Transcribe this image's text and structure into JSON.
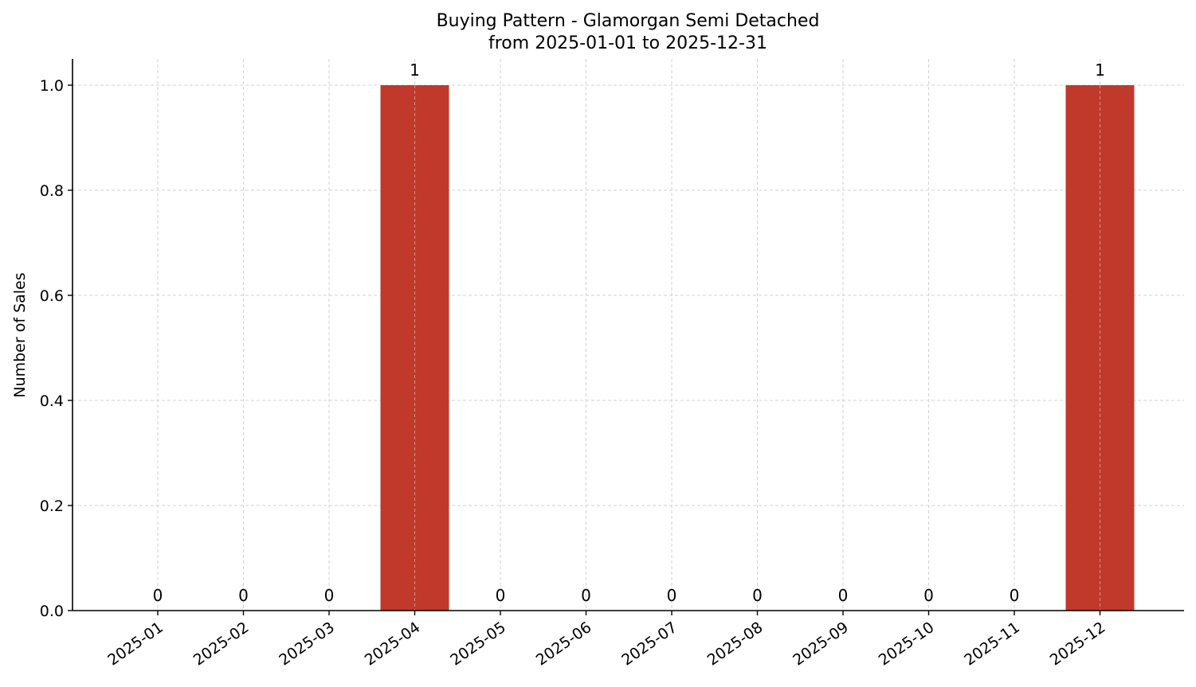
{
  "chart_data": {
    "type": "bar",
    "title": "Buying Pattern - Glamorgan Semi Detached",
    "subtitle": "from 2025-01-01 to 2025-12-31",
    "xlabel": "",
    "ylabel": "Number of Sales",
    "categories": [
      "2025-01",
      "2025-02",
      "2025-03",
      "2025-04",
      "2025-05",
      "2025-06",
      "2025-07",
      "2025-08",
      "2025-09",
      "2025-10",
      "2025-11",
      "2025-12"
    ],
    "values": [
      0,
      0,
      0,
      1,
      0,
      0,
      0,
      0,
      0,
      0,
      0,
      1
    ],
    "data_labels": [
      "0",
      "0",
      "0",
      "1",
      "0",
      "0",
      "0",
      "0",
      "0",
      "0",
      "0",
      "1"
    ],
    "ylim": [
      0,
      1.05
    ],
    "yticks": [
      "0.0",
      "0.2",
      "0.4",
      "0.6",
      "0.8",
      "1.0"
    ],
    "ytick_values": [
      0,
      0.2,
      0.4,
      0.6,
      0.8,
      1.0
    ],
    "grid": true,
    "bar_color": "#c0392b"
  }
}
